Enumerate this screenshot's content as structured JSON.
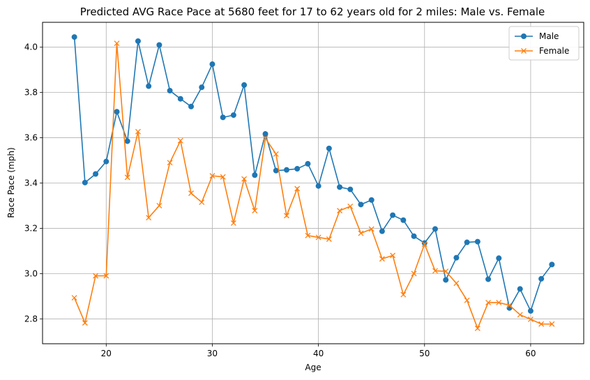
{
  "chart_data": {
    "type": "line",
    "title": "Predicted AVG Race Pace at 5680 feet for 17 to 62 years old for 2 miles: Male vs. Female",
    "xlabel": "Age",
    "ylabel": "Race Pace (mph)",
    "xlim": [
      14,
      65
    ],
    "ylim": [
      2.69,
      4.11
    ],
    "xticks": [
      20,
      30,
      40,
      50,
      60
    ],
    "yticks": [
      2.8,
      3.0,
      3.2,
      3.4,
      3.6,
      3.8,
      4.0
    ],
    "ytick_labels": [
      "2.8",
      "3.0",
      "3.2",
      "3.4",
      "3.6",
      "3.8",
      "4.0"
    ],
    "grid": true,
    "legend_position": "top-right",
    "x": [
      17,
      18,
      19,
      20,
      21,
      22,
      23,
      24,
      25,
      26,
      27,
      28,
      29,
      30,
      31,
      32,
      33,
      34,
      35,
      36,
      37,
      38,
      39,
      40,
      41,
      42,
      43,
      44,
      45,
      46,
      47,
      48,
      49,
      50,
      51,
      52,
      53,
      54,
      55,
      56,
      57,
      58,
      59,
      60,
      61,
      62
    ],
    "series": [
      {
        "name": "Male",
        "marker": "circle",
        "color": "#1f77b4",
        "values": [
          4.045,
          3.402,
          3.44,
          3.495,
          3.715,
          3.585,
          4.027,
          3.828,
          4.01,
          3.808,
          3.772,
          3.738,
          3.823,
          3.925,
          3.69,
          3.7,
          3.833,
          3.435,
          3.617,
          3.455,
          3.458,
          3.463,
          3.485,
          3.387,
          3.553,
          3.382,
          3.372,
          3.305,
          3.325,
          3.187,
          3.258,
          3.236,
          3.165,
          3.135,
          3.197,
          2.972,
          3.07,
          3.138,
          3.141,
          2.975,
          3.068,
          2.848,
          2.932,
          2.835,
          2.977,
          3.04
        ]
      },
      {
        "name": "Female",
        "marker": "x",
        "color": "#ff7f0e",
        "values": [
          2.893,
          2.782,
          2.99,
          2.99,
          4.017,
          3.425,
          3.627,
          3.247,
          3.3,
          3.49,
          3.587,
          3.355,
          3.315,
          3.432,
          3.427,
          3.223,
          3.418,
          3.278,
          3.598,
          3.528,
          3.256,
          3.375,
          3.168,
          3.16,
          3.152,
          3.278,
          3.297,
          3.178,
          3.197,
          3.065,
          3.08,
          2.907,
          3.0,
          3.13,
          3.012,
          3.01,
          2.957,
          2.882,
          2.758,
          2.872,
          2.872,
          2.86,
          2.818,
          2.798,
          2.777,
          2.777
        ]
      }
    ]
  }
}
